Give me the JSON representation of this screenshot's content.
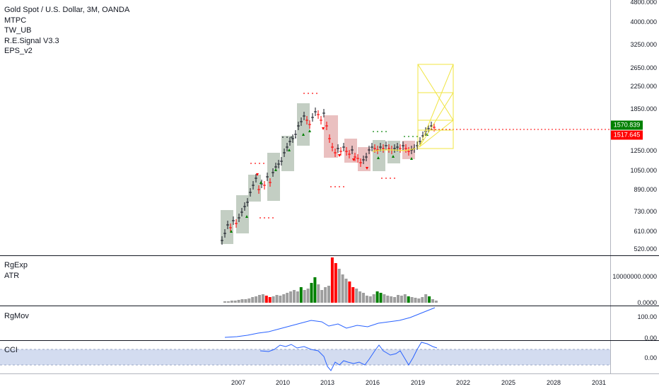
{
  "header": {
    "symbol_title": "Gold Spot / U.S. Dollar, 3M, OANDA",
    "indicators": [
      "MTPC",
      "TW_UB",
      "R.E.Signal V3.3",
      "EPS_v2"
    ]
  },
  "main_axis": {
    "labels": [
      "4800.000",
      "4000.000",
      "3250.000",
      "2650.000",
      "2250.000",
      "1850.000",
      "1250.000",
      "1050.000",
      "890.000",
      "730.000",
      "610.000",
      "520.000"
    ]
  },
  "price_tags": {
    "upper": {
      "value": "1570.839",
      "color": "#008000"
    },
    "lower": {
      "value": "1517.645",
      "color": "#ff0000"
    }
  },
  "pane_rgexp": {
    "titles": [
      "RgExp",
      "ATR"
    ],
    "axis_labels": [
      "10000000.0000",
      "0.0000"
    ]
  },
  "pane_rgmov": {
    "titles": [
      "RgMov"
    ],
    "axis_labels": [
      "100.00",
      "0.00"
    ]
  },
  "pane_cci": {
    "titles": [
      "CCI"
    ],
    "axis_labels": [
      "0.00"
    ]
  },
  "time_axis": {
    "labels": [
      "2007",
      "2010",
      "2013",
      "2016",
      "2019",
      "2022",
      "2025",
      "2028",
      "2031"
    ]
  },
  "colors": {
    "up_box": "#b9c6b9",
    "down_box": "#e6b5b5",
    "up_bar": "#008000",
    "down_bar": "#ff0000",
    "neutral_bar": "#9e9e9e",
    "projection": "#f0e442",
    "line_blue": "#2962ff",
    "cci_band": "#c8d3ec"
  }
}
